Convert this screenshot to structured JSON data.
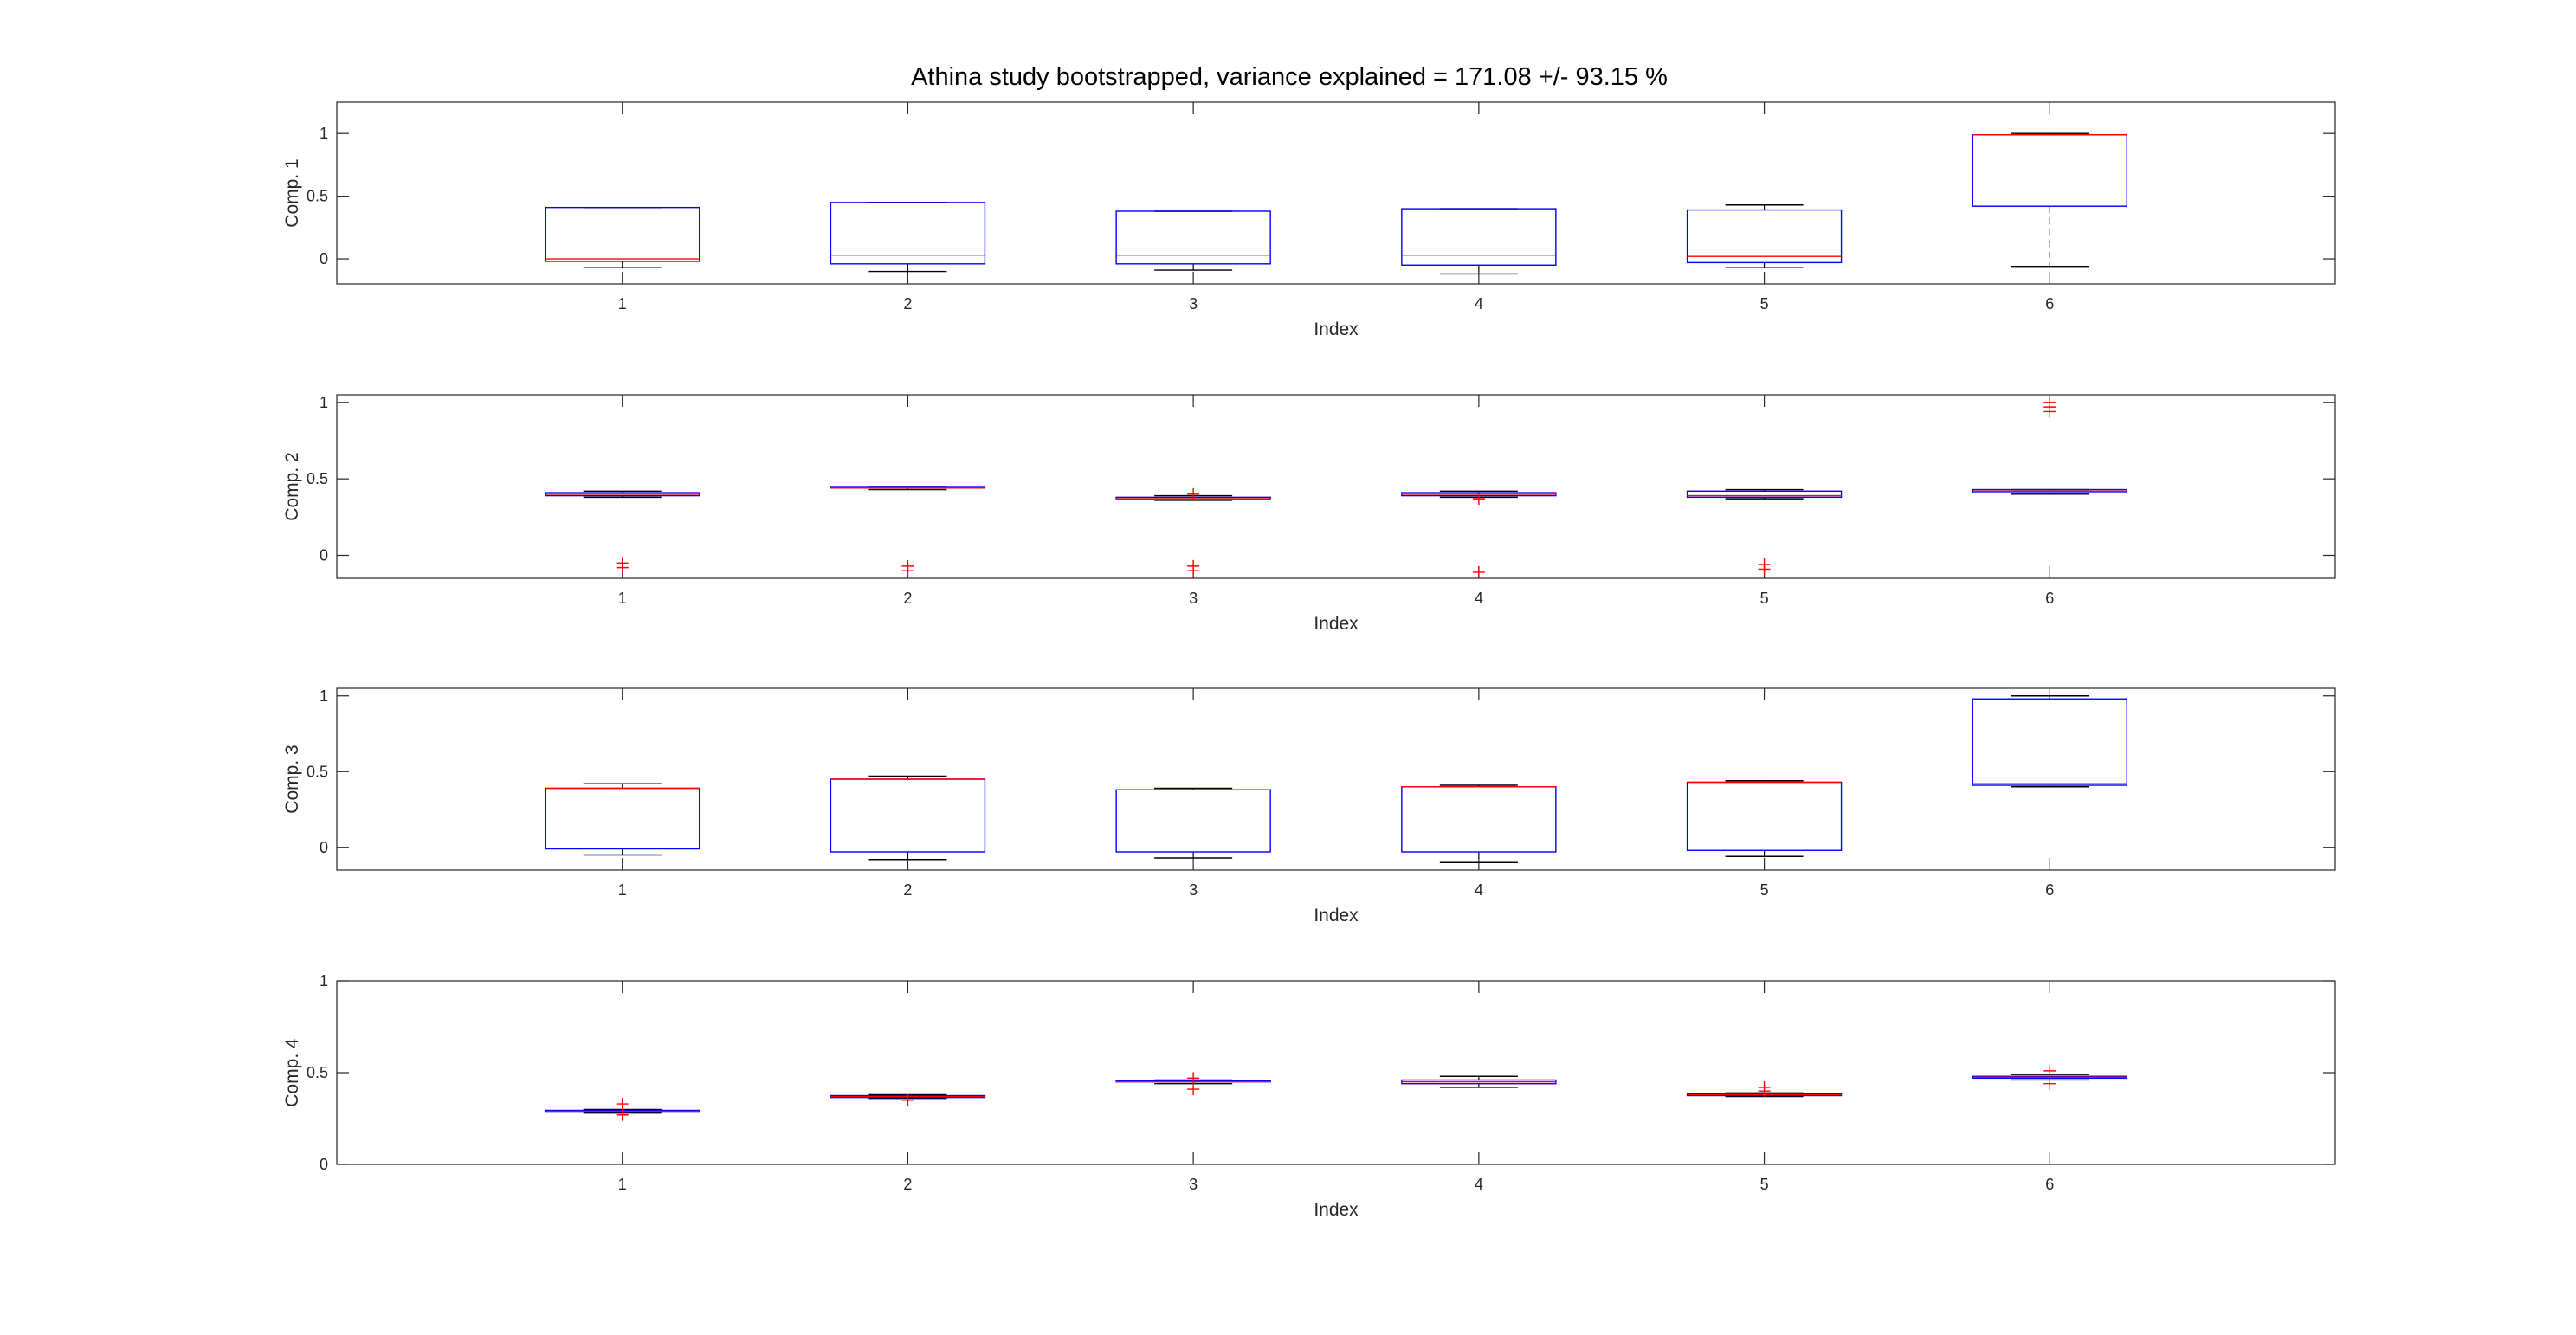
{
  "figure": {
    "title": "Athina study bootstrapped, variance explained = 171.08 +/- 93.15 %"
  },
  "colors": {
    "box": "#0000ff",
    "median": "#ff0000",
    "whisker": "#000000",
    "outlier": "#ff0000",
    "axes": "#262626"
  },
  "chart_data": [
    {
      "type": "box",
      "ylabel": "Comp. 1",
      "xlabel": "Index",
      "ylim": [
        -0.2,
        1.25
      ],
      "yticks": [
        0,
        0.5,
        1
      ],
      "ytick_labels": [
        "0",
        "0.5",
        "1"
      ],
      "categories": [
        "1",
        "2",
        "3",
        "4",
        "5",
        "6"
      ],
      "boxes": [
        {
          "whisker_low": -0.07,
          "q1": -0.02,
          "median": 0.0,
          "q3": 0.41,
          "whisker_high": 0.41,
          "outliers": []
        },
        {
          "whisker_low": -0.1,
          "q1": -0.04,
          "median": 0.03,
          "q3": 0.45,
          "whisker_high": 0.45,
          "outliers": []
        },
        {
          "whisker_low": -0.09,
          "q1": -0.04,
          "median": 0.03,
          "q3": 0.38,
          "whisker_high": 0.38,
          "outliers": []
        },
        {
          "whisker_low": -0.12,
          "q1": -0.05,
          "median": 0.03,
          "q3": 0.4,
          "whisker_high": 0.4,
          "outliers": []
        },
        {
          "whisker_low": -0.07,
          "q1": -0.03,
          "median": 0.02,
          "q3": 0.39,
          "whisker_high": 0.43,
          "outliers": []
        },
        {
          "whisker_low": -0.06,
          "q1": 0.42,
          "median": 0.99,
          "q3": 0.99,
          "whisker_high": 1.0,
          "outliers": []
        }
      ]
    },
    {
      "type": "box",
      "ylabel": "Comp. 2",
      "xlabel": "Index",
      "ylim": [
        -0.15,
        1.05
      ],
      "yticks": [
        0,
        0.5,
        1
      ],
      "ytick_labels": [
        "0",
        "0.5",
        "1"
      ],
      "categories": [
        "1",
        "2",
        "3",
        "4",
        "5",
        "6"
      ],
      "boxes": [
        {
          "whisker_low": 0.38,
          "q1": 0.39,
          "median": 0.4,
          "q3": 0.41,
          "whisker_high": 0.42,
          "outliers": [
            -0.05,
            -0.08
          ]
        },
        {
          "whisker_low": 0.43,
          "q1": 0.44,
          "median": 0.44,
          "q3": 0.45,
          "whisker_high": 0.45,
          "outliers": [
            -0.07,
            -0.1
          ]
        },
        {
          "whisker_low": 0.36,
          "q1": 0.37,
          "median": 0.37,
          "q3": 0.38,
          "whisker_high": 0.39,
          "outliers": [
            -0.07,
            -0.1,
            0.4
          ]
        },
        {
          "whisker_low": 0.38,
          "q1": 0.39,
          "median": 0.4,
          "q3": 0.41,
          "whisker_high": 0.42,
          "outliers": [
            -0.11,
            0.37
          ]
        },
        {
          "whisker_low": 0.37,
          "q1": 0.38,
          "median": 0.39,
          "q3": 0.42,
          "whisker_high": 0.43,
          "outliers": [
            -0.06,
            -0.09
          ]
        },
        {
          "whisker_low": 0.4,
          "q1": 0.41,
          "median": 0.42,
          "q3": 0.43,
          "whisker_high": 0.43,
          "outliers": [
            0.97,
            1.0,
            0.94
          ]
        }
      ]
    },
    {
      "type": "box",
      "ylabel": "Comp. 3",
      "xlabel": "Index",
      "ylim": [
        -0.15,
        1.05
      ],
      "yticks": [
        0,
        0.5,
        1
      ],
      "ytick_labels": [
        "0",
        "0.5",
        "1"
      ],
      "categories": [
        "1",
        "2",
        "3",
        "4",
        "5",
        "6"
      ],
      "boxes": [
        {
          "whisker_low": -0.05,
          "q1": -0.01,
          "median": 0.39,
          "q3": 0.39,
          "whisker_high": 0.42,
          "outliers": []
        },
        {
          "whisker_low": -0.08,
          "q1": -0.03,
          "median": 0.45,
          "q3": 0.45,
          "whisker_high": 0.47,
          "outliers": []
        },
        {
          "whisker_low": -0.07,
          "q1": -0.03,
          "median": 0.38,
          "q3": 0.38,
          "whisker_high": 0.39,
          "outliers": []
        },
        {
          "whisker_low": -0.1,
          "q1": -0.03,
          "median": 0.4,
          "q3": 0.4,
          "whisker_high": 0.41,
          "outliers": []
        },
        {
          "whisker_low": -0.06,
          "q1": -0.02,
          "median": 0.43,
          "q3": 0.43,
          "whisker_high": 0.44,
          "outliers": []
        },
        {
          "whisker_low": 0.4,
          "q1": 0.41,
          "median": 0.42,
          "q3": 0.98,
          "whisker_high": 1.0,
          "outliers": []
        }
      ]
    },
    {
      "type": "box",
      "ylabel": "Comp. 4",
      "xlabel": "Index",
      "ylim": [
        0,
        1
      ],
      "yticks": [
        0,
        0.5,
        1
      ],
      "ytick_labels": [
        "0",
        "0.5",
        "1"
      ],
      "categories": [
        "1",
        "2",
        "3",
        "4",
        "5",
        "6"
      ],
      "boxes": [
        {
          "whisker_low": 0.28,
          "q1": 0.285,
          "median": 0.29,
          "q3": 0.295,
          "whisker_high": 0.3,
          "outliers": [
            0.33,
            0.27
          ]
        },
        {
          "whisker_low": 0.36,
          "q1": 0.365,
          "median": 0.37,
          "q3": 0.375,
          "whisker_high": 0.38,
          "outliers": [
            0.35
          ]
        },
        {
          "whisker_low": 0.44,
          "q1": 0.45,
          "median": 0.45,
          "q3": 0.455,
          "whisker_high": 0.46,
          "outliers": [
            0.41,
            0.47
          ]
        },
        {
          "whisker_low": 0.42,
          "q1": 0.44,
          "median": 0.45,
          "q3": 0.46,
          "whisker_high": 0.48,
          "outliers": []
        },
        {
          "whisker_low": 0.37,
          "q1": 0.375,
          "median": 0.38,
          "q3": 0.385,
          "whisker_high": 0.39,
          "outliers": [
            0.42,
            0.4
          ]
        },
        {
          "whisker_low": 0.46,
          "q1": 0.47,
          "median": 0.475,
          "q3": 0.48,
          "whisker_high": 0.49,
          "outliers": [
            0.44,
            0.51
          ]
        }
      ]
    }
  ]
}
